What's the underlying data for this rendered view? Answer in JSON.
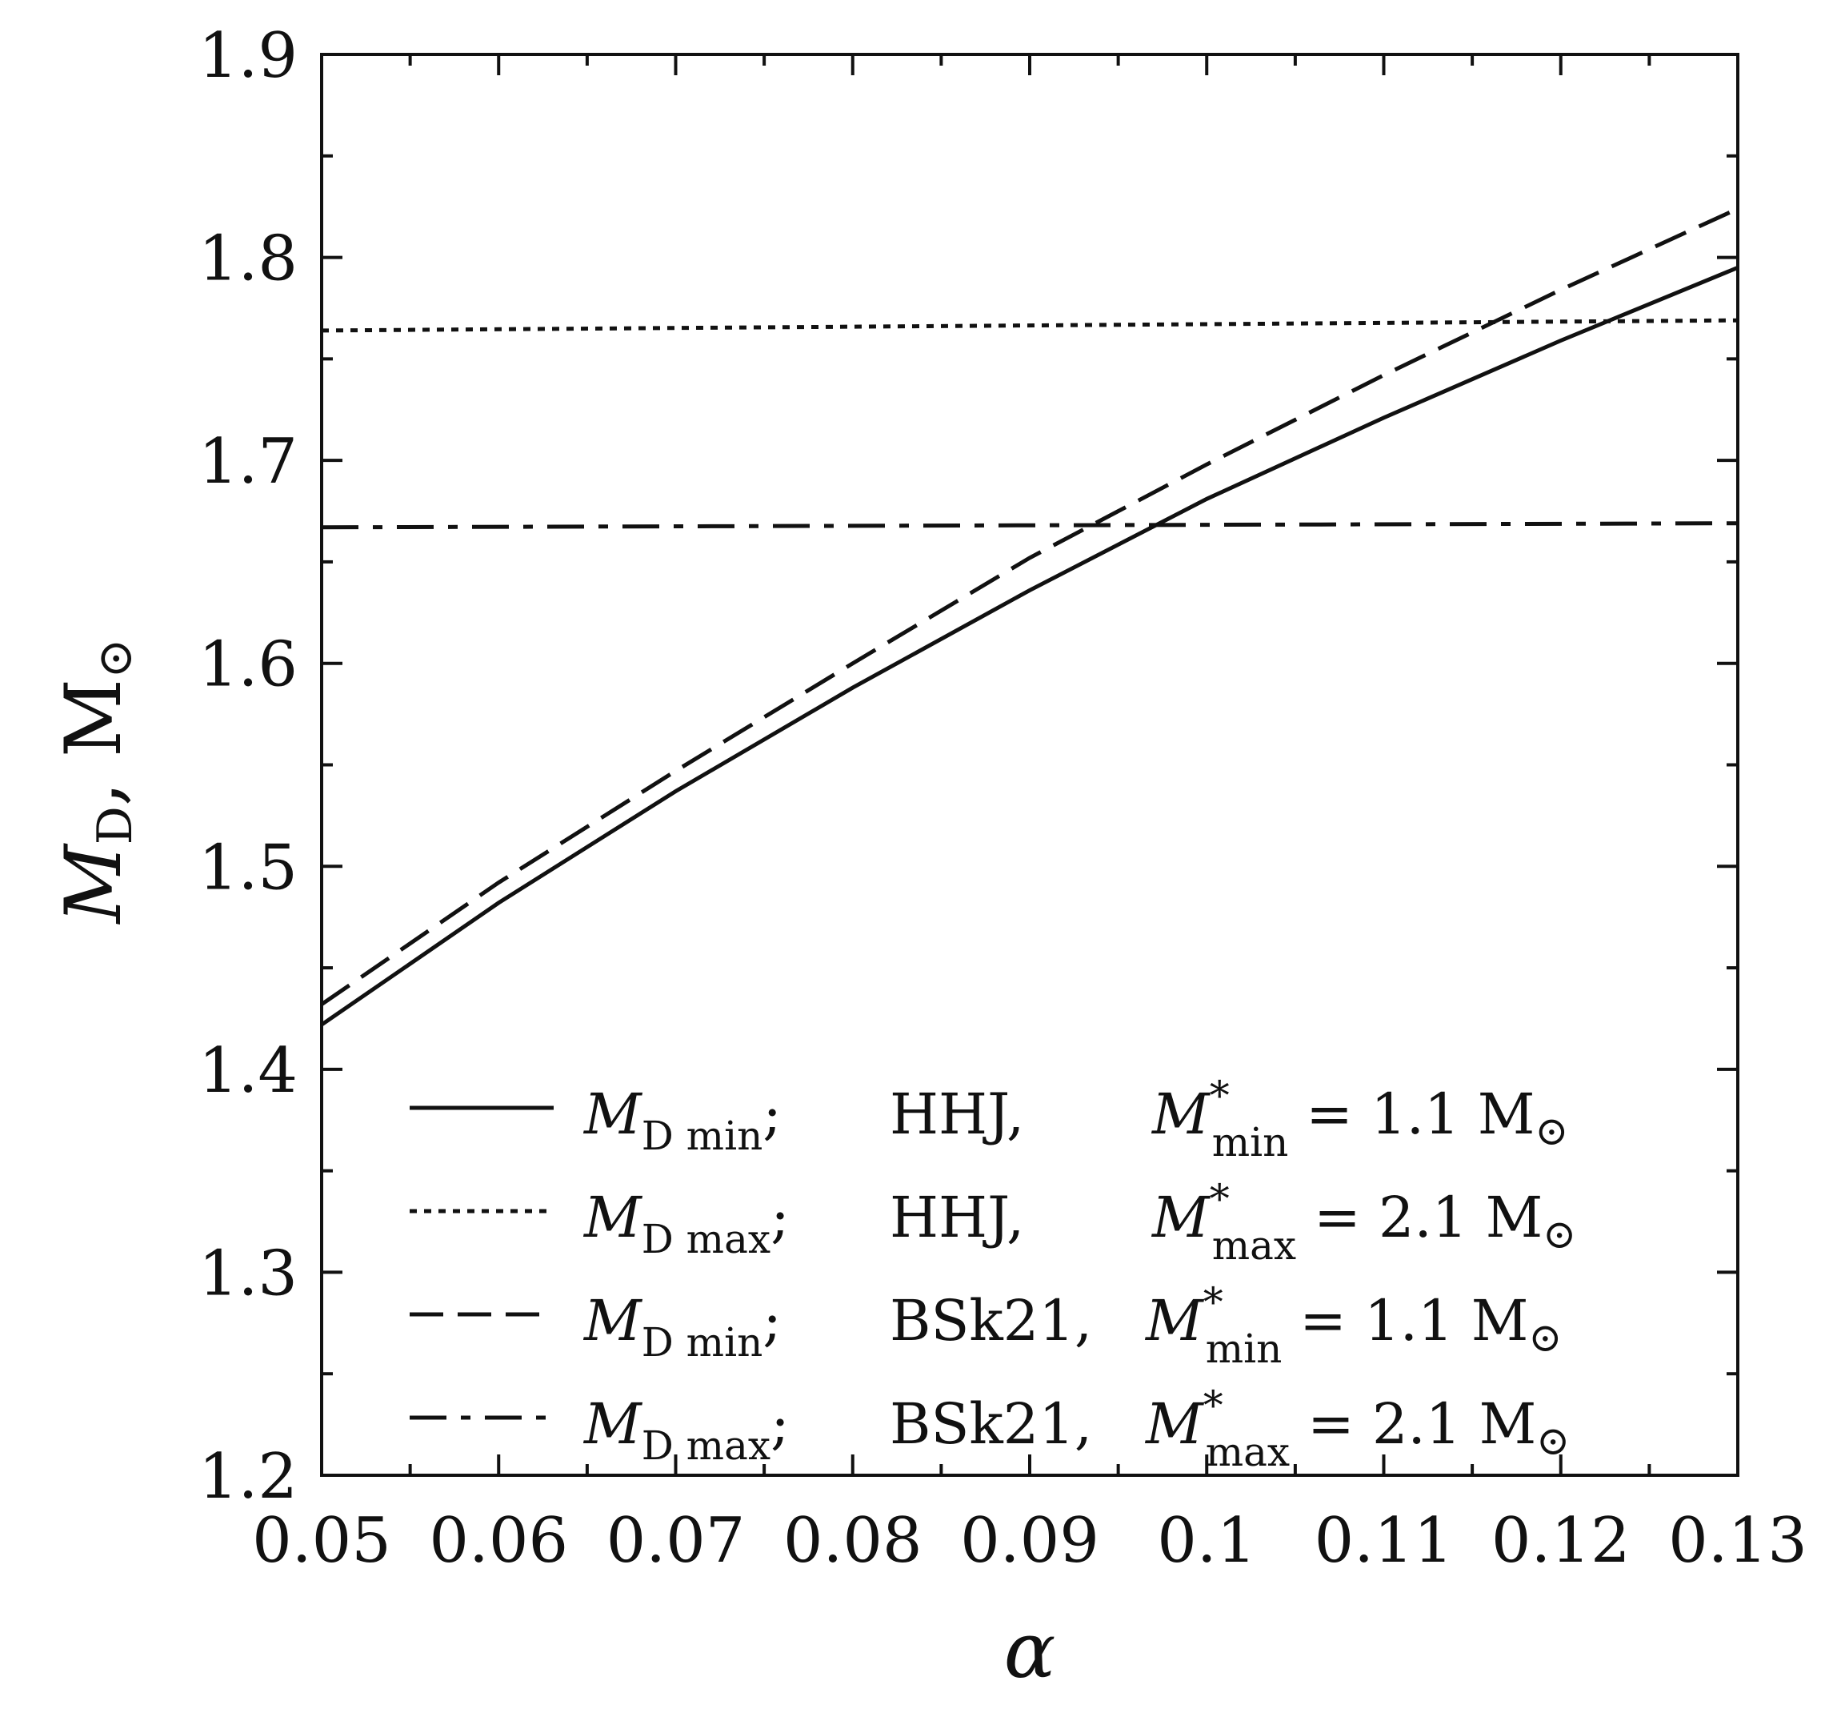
{
  "chart_data": {
    "type": "line",
    "xlabel": "α",
    "ylabel": {
      "main": "M",
      "sub": "D",
      "rest": ", M",
      "sun": "⊙"
    },
    "xlim": [
      0.05,
      0.13
    ],
    "ylim": [
      1.2,
      1.9
    ],
    "xticks": [
      0.05,
      0.06,
      0.07,
      0.08,
      0.09,
      0.1,
      0.11,
      0.12,
      0.13
    ],
    "xtick_labels": [
      "0.05",
      "0.06",
      "0.07",
      "0.08",
      "0.09",
      "0.1",
      "0.11",
      "0.12",
      "0.13"
    ],
    "yticks": [
      1.2,
      1.3,
      1.4,
      1.5,
      1.6,
      1.7,
      1.8,
      1.9
    ],
    "ytick_labels": [
      "1.2",
      "1.3",
      "1.4",
      "1.5",
      "1.6",
      "1.7",
      "1.8",
      "1.9"
    ],
    "grid": false,
    "legend_position": "bottom-right",
    "series": [
      {
        "name": "M_D min; HHJ, M*_min = 1.1 M⊙",
        "style": "solid",
        "legend": {
          "sub": "D min",
          "model": "HHJ,",
          "msub": "min",
          "value": "= 1.1 M"
        },
        "x": [
          0.05,
          0.06,
          0.07,
          0.08,
          0.09,
          0.1,
          0.11,
          0.12,
          0.13
        ],
        "y": [
          1.422,
          1.482,
          1.537,
          1.588,
          1.636,
          1.681,
          1.721,
          1.759,
          1.795
        ]
      },
      {
        "name": "M_D max; HHJ, M*_max = 2.1 M⊙",
        "style": "dotted",
        "legend": {
          "sub": "D max",
          "model": "HHJ,",
          "msub": "max",
          "value": "= 2.1 M"
        },
        "x": [
          0.05,
          0.13
        ],
        "y": [
          1.764,
          1.769
        ]
      },
      {
        "name": "M_D min; BSk21, M*_min = 1.1 M⊙",
        "style": "dashed",
        "legend": {
          "sub": "D min",
          "model": "BSk21,",
          "msub": "min",
          "value": "= 1.1 M"
        },
        "x": [
          0.05,
          0.06,
          0.07,
          0.08,
          0.09,
          0.1,
          0.11,
          0.12,
          0.13
        ],
        "y": [
          1.432,
          1.492,
          1.547,
          1.6,
          1.652,
          1.698,
          1.742,
          1.784,
          1.824
        ]
      },
      {
        "name": "M_D max; BSk21, M*_max = 2.1 M⊙",
        "style": "dashdot",
        "legend": {
          "sub": "D max",
          "model": "BSk21,",
          "msub": "max",
          "value": "= 2.1 M"
        },
        "x": [
          0.05,
          0.13
        ],
        "y": [
          1.667,
          1.669
        ]
      }
    ]
  }
}
